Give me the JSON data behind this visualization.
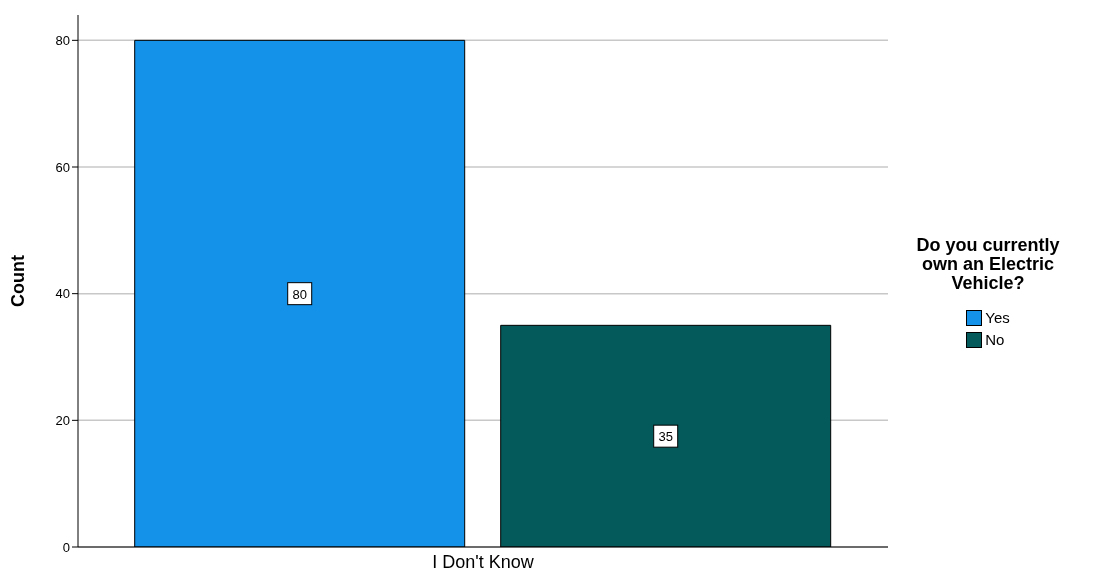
{
  "chart_data": {
    "type": "bar",
    "ylabel": "Count",
    "legend_title": "Do you currently own an Electric Vehicle?",
    "categories": [
      "I Don't Know"
    ],
    "series": [
      {
        "name": "Yes",
        "color": "#1491e8",
        "values": [
          80
        ]
      },
      {
        "name": "No",
        "color": "#045a5a",
        "values": [
          35
        ]
      }
    ],
    "ylim": [
      0,
      84
    ],
    "yticks": [
      0,
      20,
      40,
      60,
      80
    ],
    "grid": "y",
    "legend": "right",
    "data_labels": true
  }
}
